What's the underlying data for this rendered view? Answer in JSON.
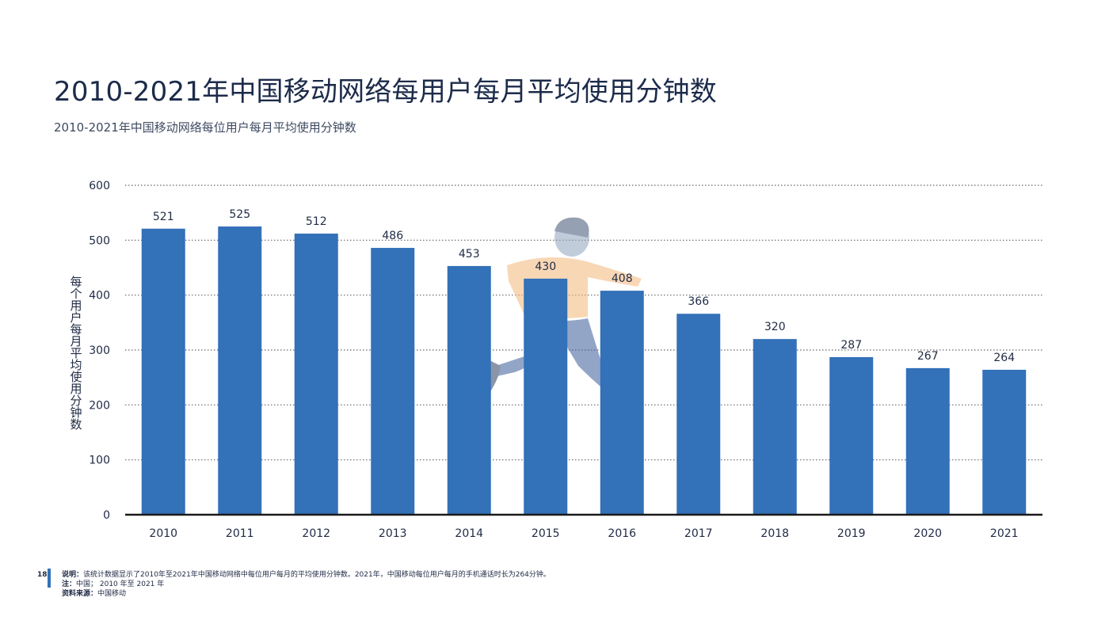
{
  "title": "2010-2021年中国移动网络每用户每月平均使用分钟数",
  "subtitle": "2010-2021年中国移动网络每位用户每月平均使用分钟数",
  "colors": {
    "bar": "#3371b8",
    "grid": "#666666",
    "axis": "#1a1a1a",
    "accent": "#3371b8"
  },
  "chart_data": {
    "type": "bar",
    "title": "",
    "categories": [
      "2010",
      "2011",
      "2012",
      "2013",
      "2014",
      "2015",
      "2016",
      "2017",
      "2018",
      "2019",
      "2020",
      "2021"
    ],
    "values": [
      521,
      525,
      512,
      486,
      453,
      430,
      408,
      366,
      320,
      287,
      267,
      264
    ],
    "data_labels": [
      "521",
      "525",
      "512",
      "486",
      "453",
      "430",
      "408",
      "366",
      "320",
      "287",
      "267",
      "264"
    ],
    "xlabel": "",
    "ylabel": "每个用户每月平均使用分钟数",
    "ylim": [
      0,
      600
    ],
    "yticks": [
      0,
      100,
      200,
      300,
      400,
      500,
      600
    ],
    "ytick_labels": [
      "0",
      "100",
      "200",
      "300",
      "400",
      "500",
      "600"
    ],
    "grid": true,
    "legend": "none"
  },
  "footer": {
    "page_number": "18",
    "note_label": "说明：",
    "note_text": "该统计数据显示了2010年至2021年中国移动网络中每位用户每月的平均使用分钟数。2021年，中国移动每位用户每月的手机通话时长为264分钟。",
    "remark_label": "注：",
    "remark_text": "中国； 2010 年至 2021 年",
    "source_label": "资料来源：",
    "source_text": "中国移动"
  }
}
